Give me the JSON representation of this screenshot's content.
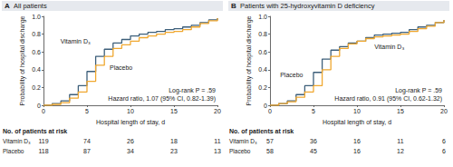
{
  "chart_data": [
    {
      "type": "step",
      "panel_label": "A",
      "title": "All patients",
      "x_label": "Hospital length of stay, d",
      "y_label": "Probability of hospital discharge",
      "x": [
        0,
        1,
        2,
        3,
        4,
        5,
        6,
        7,
        8,
        9,
        10,
        11,
        12,
        13,
        14,
        15,
        16,
        17,
        18,
        19,
        20
      ],
      "series": [
        {
          "name": "Vitamin D₃",
          "color": "#3d5f7a",
          "values": [
            0,
            0.02,
            0.05,
            0.12,
            0.22,
            0.38,
            0.55,
            0.63,
            0.7,
            0.74,
            0.78,
            0.8,
            0.82,
            0.83,
            0.85,
            0.86,
            0.88,
            0.9,
            0.93,
            0.96,
            0.98
          ]
        },
        {
          "name": "Placebo",
          "color": "#f0a830",
          "values": [
            0,
            0.01,
            0.03,
            0.08,
            0.15,
            0.27,
            0.45,
            0.55,
            0.64,
            0.68,
            0.72,
            0.76,
            0.78,
            0.8,
            0.82,
            0.83,
            0.85,
            0.88,
            0.92,
            0.95,
            0.98
          ]
        }
      ],
      "xlim": [
        0,
        20
      ],
      "xticks": [
        0,
        5,
        10,
        15,
        20
      ],
      "ylim": [
        0,
        1
      ],
      "yticks": [
        0,
        0.2,
        0.4,
        0.6,
        0.8,
        {
          "value": 1,
          "label": "1.0"
        }
      ],
      "grid": false,
      "annotations": [
        "Log-rank P = .59",
        "Hazard ratio, 1.07 (95% CI, 0.82-1.39)"
      ],
      "at_risk": {
        "title": "No. of patients at risk",
        "x": [
          0,
          5,
          10,
          15,
          20
        ],
        "rows": [
          {
            "name": "Vitamin D₃",
            "values": [
              119,
              74,
              26,
              18,
              11
            ]
          },
          {
            "name": "Placebo",
            "values": [
              118,
              87,
              34,
              23,
              13
            ]
          }
        ]
      }
    },
    {
      "type": "step",
      "panel_label": "B",
      "title": "Patients with 25-hydroxyvitamin D deficiency",
      "x_label": "Hospital length of stay, d",
      "y_label": "Probability of hospital discharge",
      "x": [
        0,
        1,
        2,
        3,
        4,
        5,
        6,
        7,
        8,
        9,
        10,
        11,
        12,
        13,
        14,
        15,
        16,
        17,
        18,
        19,
        20
      ],
      "series": [
        {
          "name": "Vitamin D₃",
          "color": "#3d5f7a",
          "values": [
            0,
            0.02,
            0.05,
            0.12,
            0.22,
            0.37,
            0.52,
            0.62,
            0.66,
            0.7,
            0.72,
            0.76,
            0.79,
            0.8,
            0.81,
            0.82,
            0.85,
            0.88,
            0.9,
            0.93,
            0.96
          ]
        },
        {
          "name": "Placebo",
          "color": "#f0a830",
          "values": [
            0,
            0.02,
            0.04,
            0.09,
            0.15,
            0.22,
            0.4,
            0.55,
            0.64,
            0.69,
            0.72,
            0.75,
            0.77,
            0.78,
            0.79,
            0.8,
            0.83,
            0.86,
            0.89,
            0.93,
            0.96
          ]
        }
      ],
      "xlim": [
        0,
        20
      ],
      "xticks": [
        0,
        5,
        10,
        15,
        20
      ],
      "ylim": [
        0,
        1
      ],
      "yticks": [
        0,
        0.2,
        0.4,
        0.6,
        0.8,
        {
          "value": 1,
          "label": "1.0"
        }
      ],
      "grid": false,
      "annotations": [
        "Log-rank P = .59",
        "Hazard ratio, 0.91 (95% CI, 0.62-1.32)"
      ],
      "at_risk": {
        "title": "No. of patients at risk",
        "x": [
          0,
          5,
          10,
          15,
          20
        ],
        "rows": [
          {
            "name": "Vitamin D₃",
            "values": [
              57,
              36,
              16,
              11,
              6
            ]
          },
          {
            "name": "Placebo",
            "values": [
              58,
              45,
              16,
              12,
              6
            ]
          }
        ]
      }
    }
  ]
}
